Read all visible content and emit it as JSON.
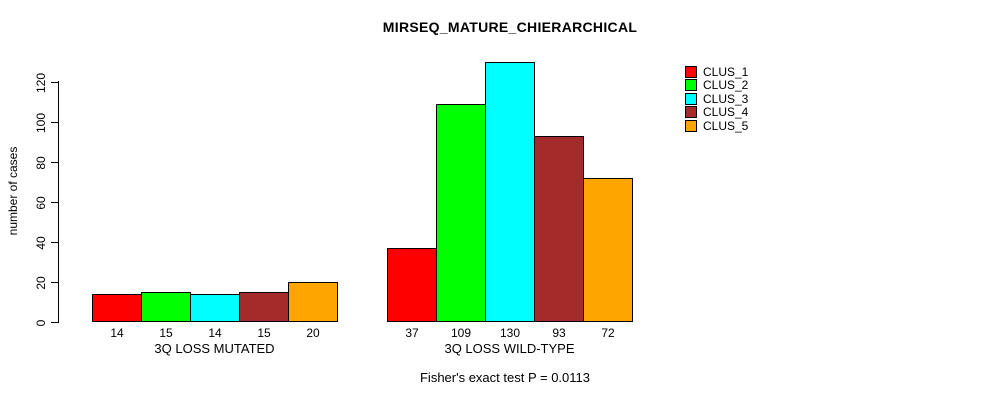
{
  "chart_data": {
    "type": "bar",
    "title": "MIRSEQ_MATURE_CHIERARCHICAL",
    "ylabel": "number of cases",
    "xlabel": "",
    "footer": "Fisher's exact test P = 0.0113",
    "yticks": [
      0,
      20,
      40,
      60,
      80,
      100,
      120
    ],
    "ylim": [
      0,
      133
    ],
    "grid": false,
    "legend_position": "top-right",
    "bar_value_labels": true,
    "categories": [
      "3Q LOSS MUTATED",
      "3Q LOSS WILD-TYPE"
    ],
    "series": [
      {
        "name": "CLUS_1",
        "color": "#ff0000",
        "values": [
          14,
          37
        ]
      },
      {
        "name": "CLUS_2",
        "color": "#00ff00",
        "values": [
          15,
          109
        ]
      },
      {
        "name": "CLUS_3",
        "color": "#00ffff",
        "values": [
          14,
          130
        ]
      },
      {
        "name": "CLUS_4",
        "color": "#a52a2a",
        "values": [
          15,
          93
        ]
      },
      {
        "name": "CLUS_5",
        "color": "#ffa500",
        "values": [
          20,
          72
        ]
      }
    ],
    "colors": {
      "background": "#ffffff",
      "axis": "#000000",
      "text": "#000000"
    }
  }
}
